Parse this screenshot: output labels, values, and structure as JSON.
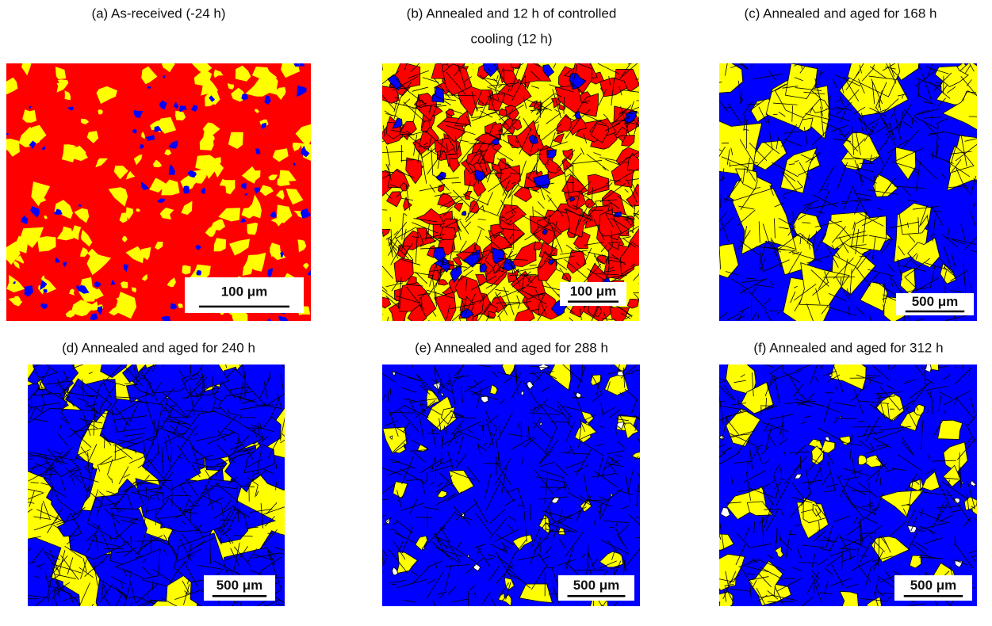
{
  "panels": [
    {
      "caption": [
        "(a) As-received (-24 h)"
      ],
      "scale_bar": "100 μm"
    },
    {
      "caption": [
        "(b) Annealed and 12 h of controlled",
        "cooling (12 h)"
      ],
      "scale_bar": "100 μm"
    },
    {
      "caption": [
        "(c) Annealed and aged for 168 h"
      ],
      "scale_bar": "500 μm"
    },
    {
      "caption": [
        "(d) Annealed and aged for 240 h"
      ],
      "scale_bar": "500 μm"
    },
    {
      "caption": [
        "(e) Annealed and aged for 288 h"
      ],
      "scale_bar": "500 μm"
    },
    {
      "caption": [
        "(f) Annealed and aged for 312 h"
      ],
      "scale_bar": "500 μm"
    }
  ]
}
